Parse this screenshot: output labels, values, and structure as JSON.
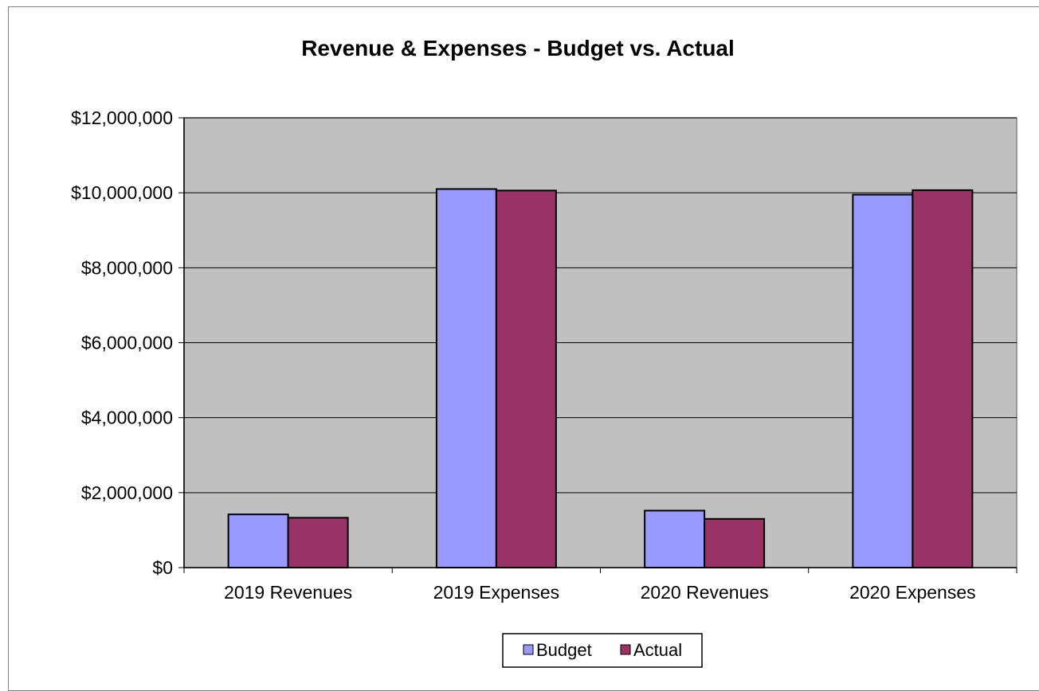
{
  "chart_data": {
    "type": "bar",
    "title": "Revenue & Expenses - Budget vs. Actual",
    "xlabel": "",
    "ylabel": "",
    "categories": [
      "2019 Revenues",
      "2019 Expenses",
      "2020 Revenues",
      "2020 Expenses"
    ],
    "series": [
      {
        "name": "Budget",
        "color": "#9999FF",
        "values": [
          1420000,
          10100000,
          1520000,
          9950000
        ]
      },
      {
        "name": "Actual",
        "color": "#993366",
        "values": [
          1330000,
          10060000,
          1300000,
          10070000
        ]
      }
    ],
    "ylim": [
      0,
      12000000
    ],
    "yticks": [
      0,
      2000000,
      4000000,
      6000000,
      8000000,
      10000000,
      12000000
    ],
    "ytick_labels": [
      "$0",
      "$2,000,000",
      "$4,000,000",
      "$6,000,000",
      "$8,000,000",
      "$10,000,000",
      "$12,000,000"
    ],
    "grid": true,
    "plot_background": "#C0C0C0",
    "legend_position": "bottom"
  }
}
